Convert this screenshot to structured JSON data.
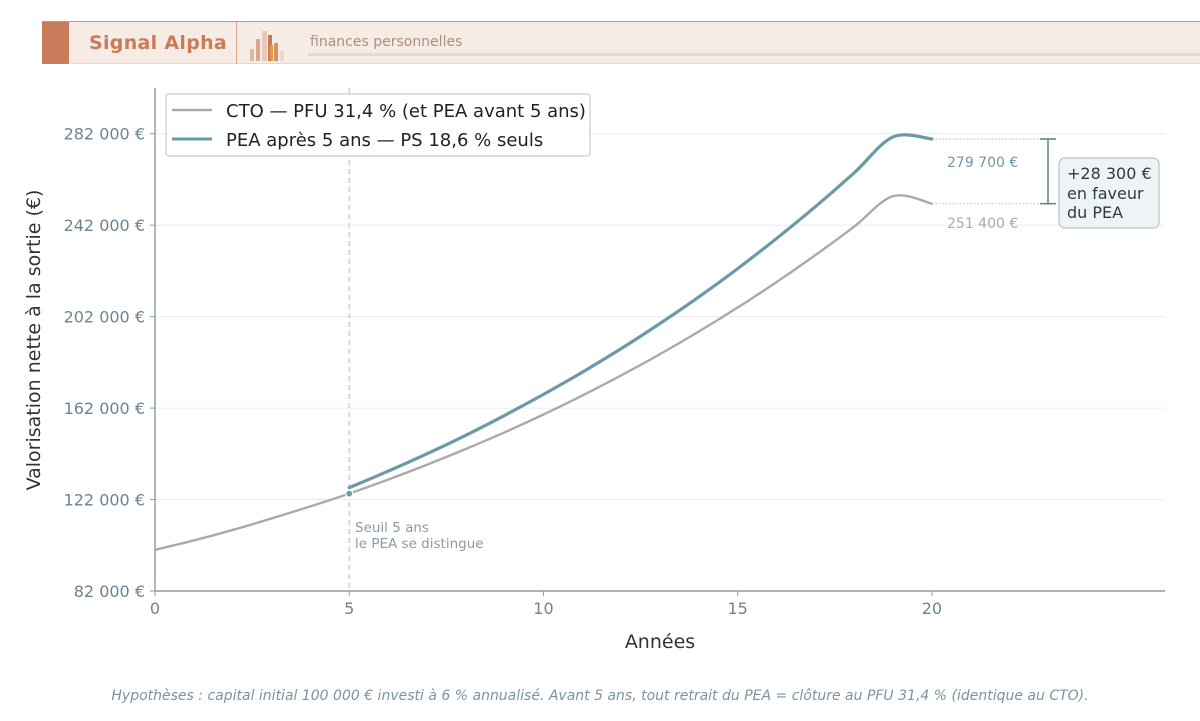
{
  "brand": {
    "name": "Signal Alpha",
    "tagline": "finances personnelles",
    "accent_color": "#c97b5a"
  },
  "chart_data": {
    "type": "line",
    "xlabel": "Années",
    "ylabel": "Valorisation nette à la sortie (€)",
    "xlim": [
      0,
      26
    ],
    "ylim": [
      82000,
      302000
    ],
    "xticks": [
      0,
      5,
      10,
      15,
      20
    ],
    "xtick_labels": [
      "0",
      "5",
      "10",
      "15",
      "20"
    ],
    "yticks": [
      82000,
      122000,
      162000,
      202000,
      242000,
      282000
    ],
    "ytick_labels": [
      "82 000 €",
      "122 000 €",
      "162 000 €",
      "202 000 €",
      "242 000 €",
      "282 000 €"
    ],
    "grid": true,
    "legend_position": "top-left",
    "series": [
      {
        "name": "CTO — PFU 31,4 % (et PEA avant 5 ans)",
        "color": "#aaaaaa",
        "x": [
          0,
          1,
          2,
          3,
          4,
          5,
          6,
          7,
          8,
          9,
          10,
          11,
          12,
          13,
          14,
          15,
          16,
          17,
          18,
          19,
          20
        ],
        "y": [
          100000,
          104100,
          108700,
          113700,
          119000,
          124600,
          130700,
          137200,
          144100,
          151400,
          159200,
          167500,
          176300,
          185600,
          195500,
          206000,
          217100,
          228900,
          241400,
          254700,
          251400
        ]
      },
      {
        "name": "PEA après 5 ans — PS 18,6 % seuls",
        "color": "#6b99a8",
        "x": [
          5,
          6,
          7,
          8,
          9,
          10,
          11,
          12,
          13,
          14,
          15,
          16,
          17,
          18,
          19,
          20
        ],
        "y": [
          127200,
          134400,
          142000,
          150100,
          158800,
          168000,
          177700,
          188000,
          199000,
          210600,
          223000,
          236200,
          250100,
          264900,
          280600,
          279700
        ]
      }
    ],
    "threshold": {
      "x": 5,
      "label_line1": "Seuil 5 ans",
      "label_line2": "le PEA se distingue"
    },
    "end_labels": {
      "pea": "279 700 €",
      "cto": "251 400 €"
    },
    "gap_annotation": {
      "line1": "+28 300 €",
      "line2": "en faveur",
      "line3": "du PEA"
    }
  },
  "footnote": "Hypothèses : capital initial 100 000 € investi à 6 % annualisé. Avant 5 ans, tout retrait du PEA = clôture au PFU 31,4 % (identique au CTO)."
}
